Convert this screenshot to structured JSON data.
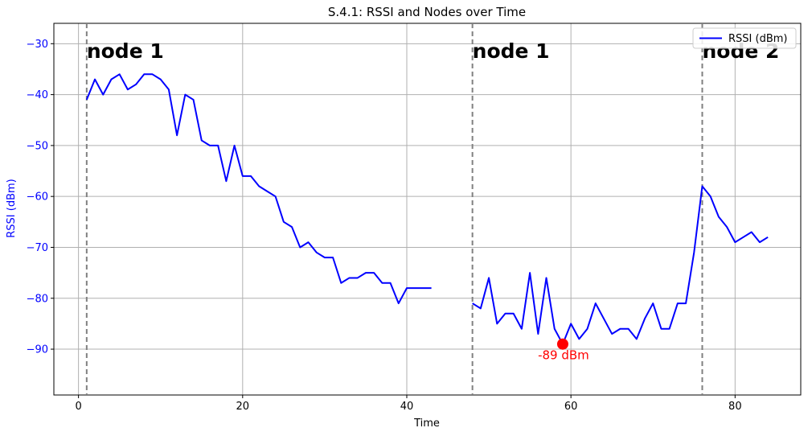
{
  "chart_data": {
    "type": "line",
    "title": "S.4.1: RSSI and Nodes over Time",
    "xlabel": "Time",
    "ylabel": "RSSI (dBm)",
    "xlim": [
      -3,
      88
    ],
    "ylim": [
      -99,
      -26
    ],
    "x_ticks": [
      0,
      20,
      40,
      60,
      80
    ],
    "y_ticks": [
      -90,
      -80,
      -70,
      -60,
      -50,
      -40,
      -30
    ],
    "x_tick_labels": [
      "0",
      "20",
      "40",
      "60",
      "80"
    ],
    "y_tick_labels": [
      "−90",
      "−80",
      "−70",
      "−60",
      "−50",
      "−40",
      "−30"
    ],
    "grid": true,
    "legend_position": "top-right",
    "series": [
      {
        "name": "RSSI (dBm)",
        "color": "#0000ff",
        "segments": [
          {
            "x": [
              1,
              2,
              3,
              4,
              5,
              6,
              7,
              8,
              9,
              10,
              11,
              12,
              13,
              14,
              15,
              16,
              17,
              18,
              19,
              20,
              21,
              22,
              23,
              24,
              25,
              26,
              27,
              28,
              29,
              30,
              31,
              32,
              33,
              34,
              35,
              36,
              37,
              38,
              39,
              40,
              41,
              42,
              43
            ],
            "y": [
              -41,
              -37,
              -40,
              -37,
              -36,
              -39,
              -38,
              -36,
              -36,
              -37,
              -39,
              -48,
              -40,
              -41,
              -49,
              -50,
              -50,
              -57,
              -50,
              -56,
              -56,
              -58,
              -59,
              -60,
              -65,
              -66,
              -70,
              -69,
              -71,
              -72,
              -72,
              -77,
              -76,
              -76,
              -75,
              -75,
              -77,
              -77,
              -81,
              -78,
              -78,
              -78,
              -78
            ]
          },
          {
            "x": [
              48,
              49,
              50,
              51,
              52,
              53,
              54,
              55,
              56,
              57,
              58,
              59,
              60,
              61,
              62,
              63,
              64,
              65,
              66,
              67,
              68,
              69,
              70,
              71,
              72,
              73,
              74,
              75,
              76,
              77,
              78,
              79,
              80,
              81,
              82,
              83,
              84
            ],
            "y": [
              -81,
              -82,
              -76,
              -85,
              -83,
              -83,
              -86,
              -75,
              -87,
              -76,
              -86,
              -89,
              -85,
              -88,
              -86,
              -81,
              -84,
              -87,
              -86,
              -86,
              -88,
              -84,
              -81,
              -86,
              -86,
              -81,
              -81,
              -71,
              -58,
              -60,
              -64,
              -66,
              -69,
              -68,
              -67,
              -69,
              -68
            ]
          }
        ]
      }
    ],
    "node_markers": [
      {
        "x": 1,
        "label": "node 1"
      },
      {
        "x": 48,
        "label": "node 1"
      },
      {
        "x": 76,
        "label": "node 2"
      }
    ],
    "highlight": {
      "x": 59,
      "y": -89,
      "label": "-89 dBm",
      "color": "#ff0000"
    },
    "colors": {
      "ylabel": "#0000ff",
      "grid": "#b0b0b0",
      "node_line": "#808080"
    }
  }
}
